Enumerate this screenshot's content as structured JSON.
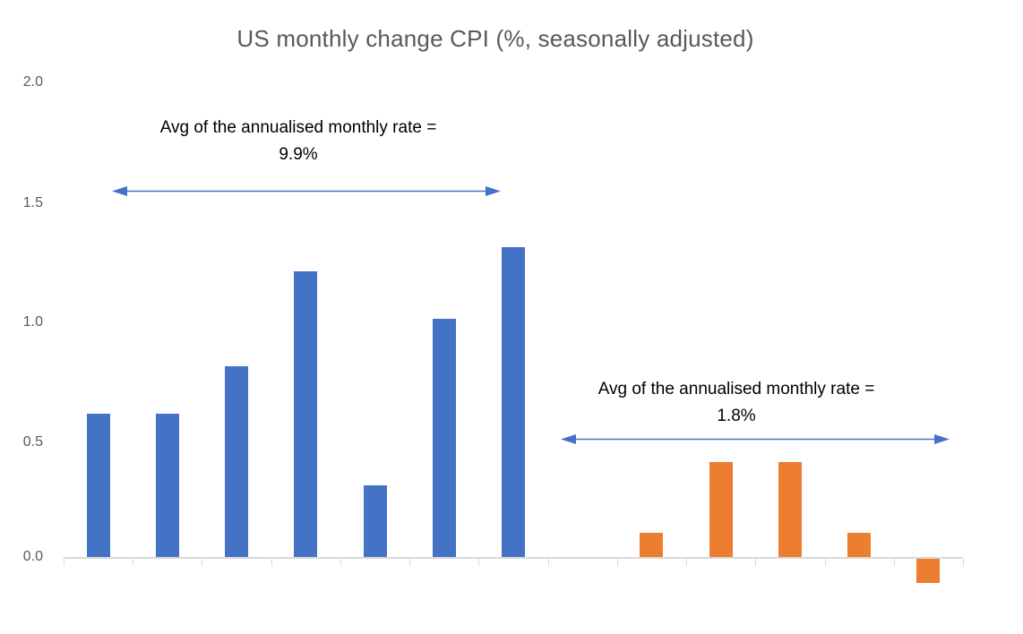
{
  "chart_data": {
    "type": "bar",
    "title": "US monthly change CPI (%, seasonally adjusted)",
    "xlabel": "",
    "ylabel": "",
    "ylim": [
      -0.2,
      2.0
    ],
    "y_tick_labels": [
      "2.0",
      "1.5",
      "1.0",
      "0.5",
      "0.0"
    ],
    "y_tick_values": [
      2.0,
      1.5,
      1.0,
      0.5,
      0.0
    ],
    "x_tick_labels_visible": false,
    "grid": false,
    "legend": false,
    "num_categories": 13,
    "series": [
      {
        "name": "blue-bars",
        "color": "#4472C4",
        "values": [
          0.6,
          0.6,
          0.8,
          1.2,
          0.3,
          1.0,
          1.3,
          null,
          null,
          null,
          null,
          null,
          null
        ]
      },
      {
        "name": "orange-bars",
        "color": "#ED7D31",
        "values": [
          null,
          null,
          null,
          null,
          null,
          null,
          null,
          null,
          0.1,
          0.4,
          0.4,
          0.1,
          -0.1
        ]
      }
    ],
    "annotations": [
      {
        "text_line1": "Avg of the annualised monthly rate =",
        "text_line2": "9.9%",
        "arrow_color": "#4472C4",
        "applies_to": "blue-bars"
      },
      {
        "text_line1": "Avg of the annualised monthly rate =",
        "text_line2": "1.8%",
        "arrow_color": "#4472C4",
        "applies_to": "orange-bars"
      }
    ]
  },
  "colors": {
    "bar_blue": "#4472C4",
    "bar_orange": "#ED7D31",
    "axis_line": "#D9D9D9",
    "title_text": "#595959",
    "annotation_text": "#000000"
  }
}
